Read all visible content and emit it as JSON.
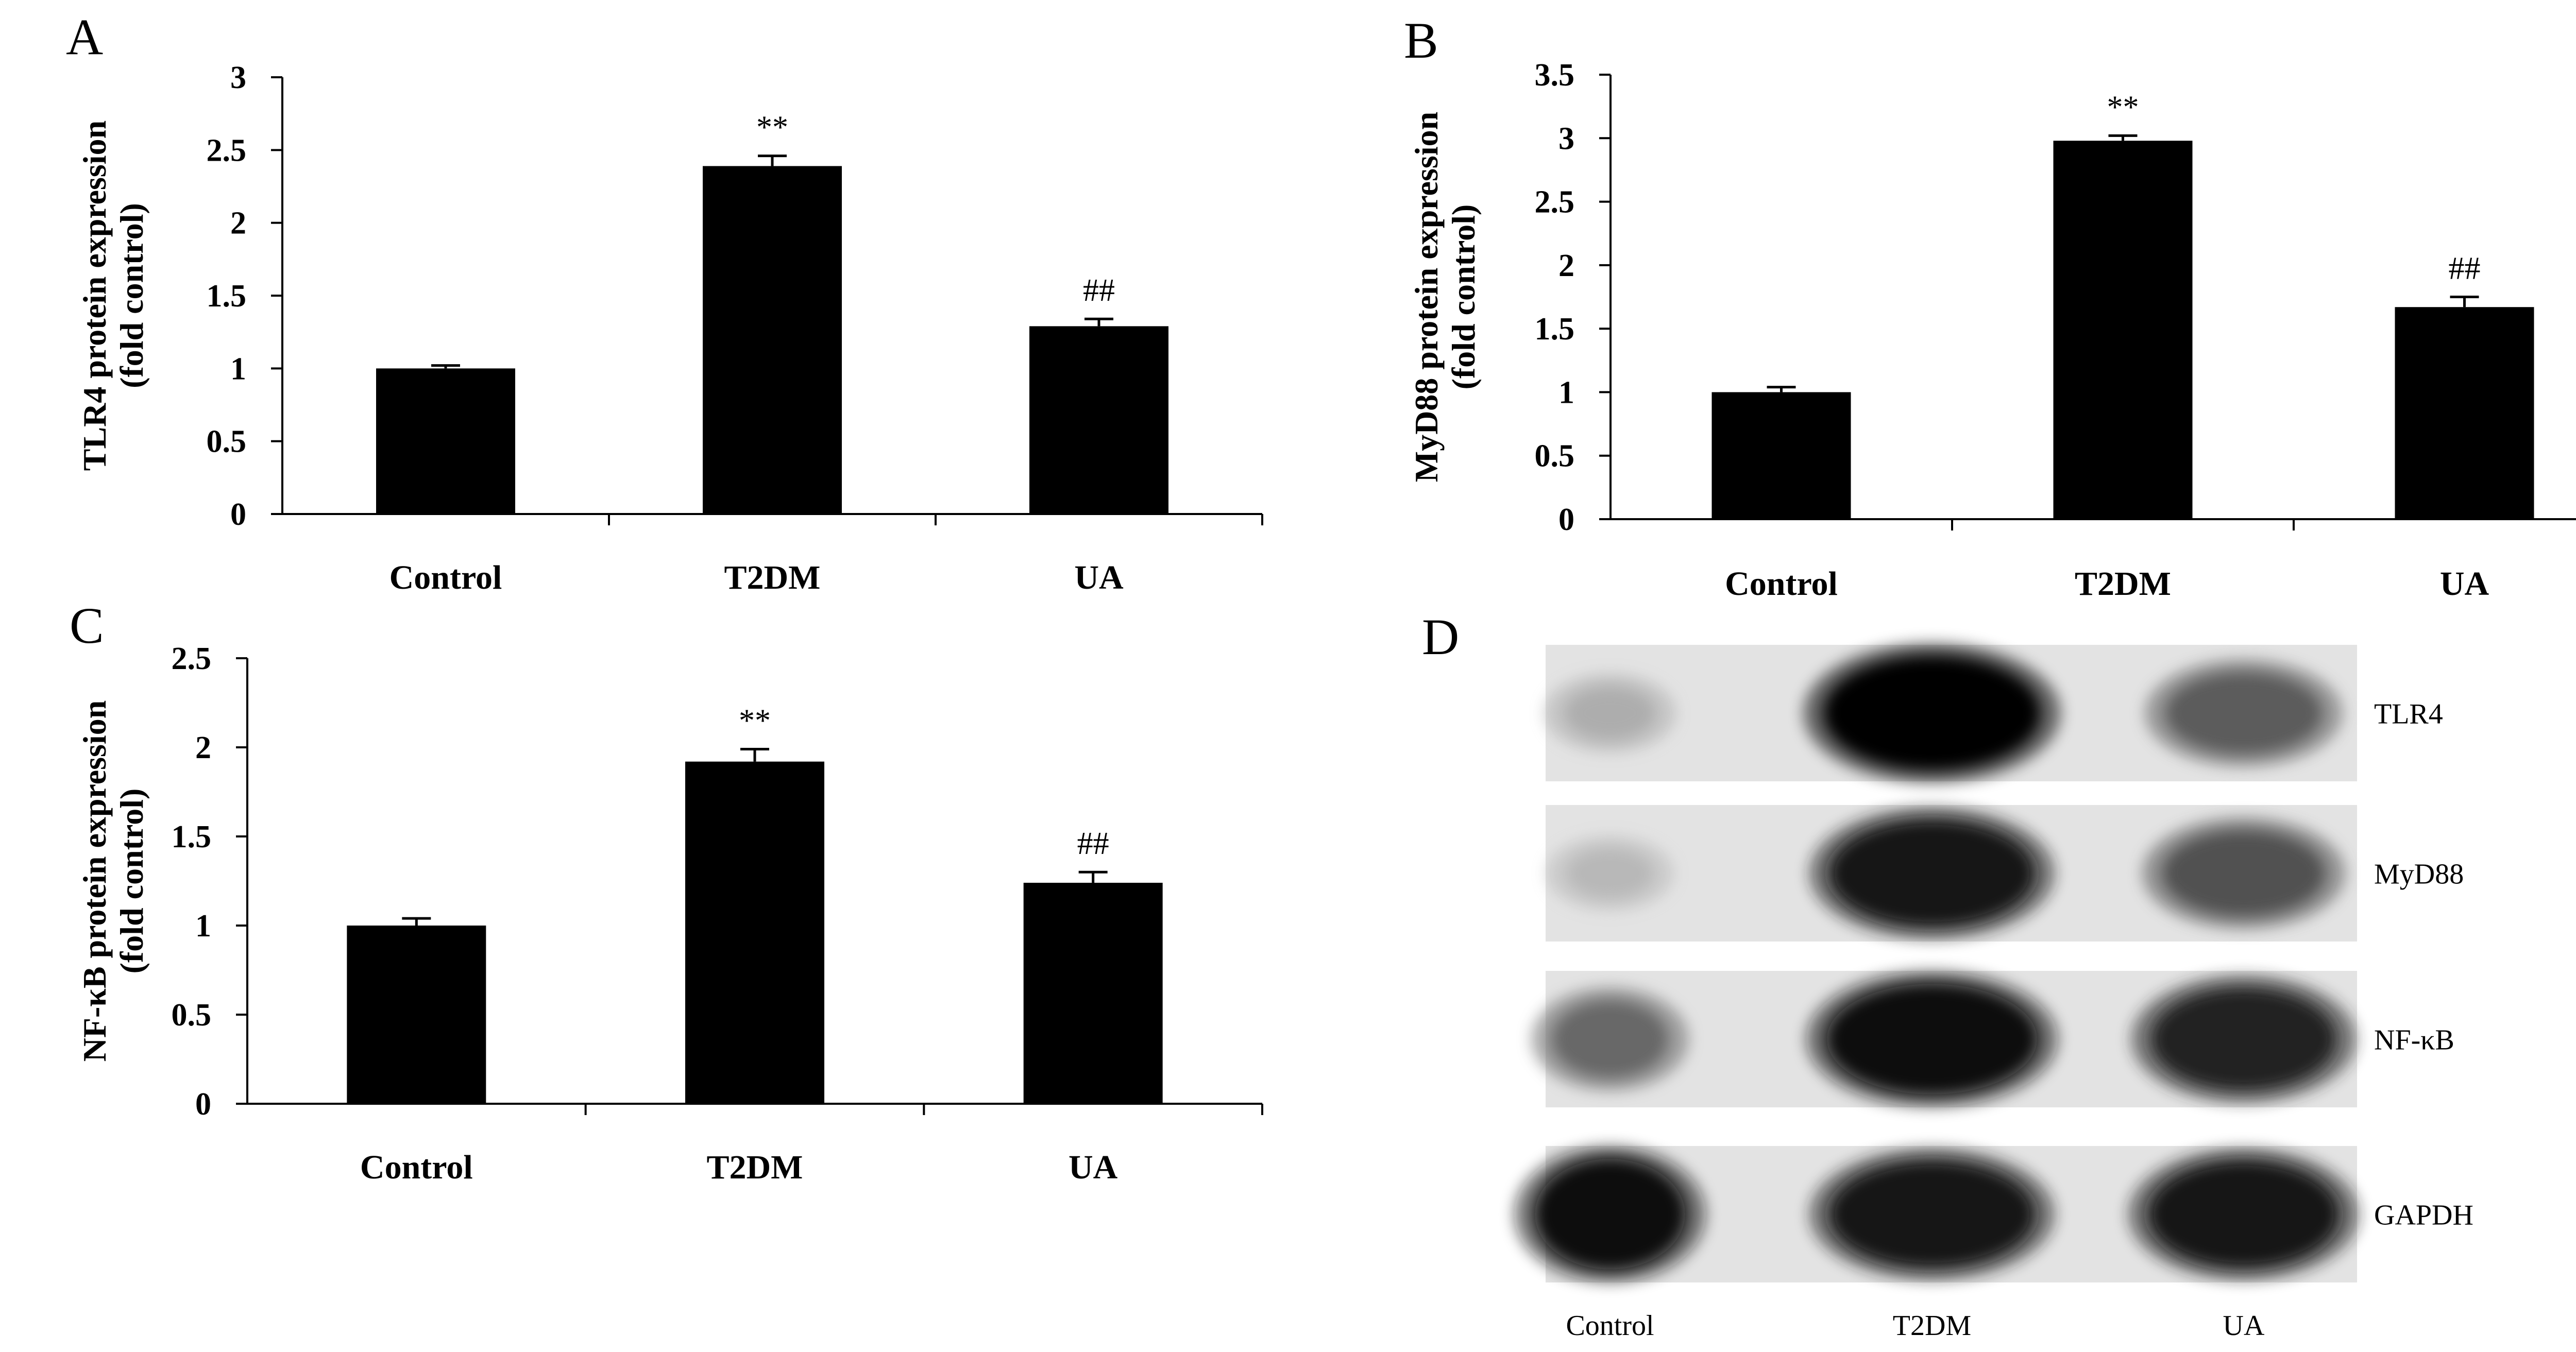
{
  "chart_data": [
    {
      "panel": "A",
      "type": "bar",
      "categories": [
        "Control",
        "T2DM",
        "UA"
      ],
      "values": [
        1.0,
        2.39,
        1.29
      ],
      "errors": [
        0.02,
        0.07,
        0.05
      ],
      "significance": [
        "",
        "**",
        "##"
      ],
      "ylabel_line1": "TLR4 protein expression",
      "ylabel_line2": "(fold control)",
      "ylim": [
        0,
        3
      ],
      "yticks": [
        "0",
        "0.5",
        "1",
        "1.5",
        "2",
        "2.5",
        "3"
      ],
      "ytick_values": [
        0,
        0.5,
        1,
        1.5,
        2,
        2.5,
        3
      ],
      "grid": false
    },
    {
      "panel": "B",
      "type": "bar",
      "categories": [
        "Control",
        "T2DM",
        "UA"
      ],
      "values": [
        1.0,
        2.98,
        1.67
      ],
      "errors": [
        0.04,
        0.04,
        0.08
      ],
      "significance": [
        "",
        "**",
        "##"
      ],
      "ylabel_line1": "MyD88 protein expression",
      "ylabel_line2": "(fold control)",
      "ylim": [
        0,
        3.5
      ],
      "yticks": [
        "0",
        "0.5",
        "1",
        "1.5",
        "2",
        "2.5",
        "3",
        "3.5"
      ],
      "ytick_values": [
        0,
        0.5,
        1,
        1.5,
        2,
        2.5,
        3,
        3.5
      ],
      "grid": false
    },
    {
      "panel": "C",
      "type": "bar",
      "categories": [
        "Control",
        "T2DM",
        "UA"
      ],
      "values": [
        1.0,
        1.92,
        1.24
      ],
      "errors": [
        0.04,
        0.07,
        0.06
      ],
      "significance": [
        "",
        "**",
        "##"
      ],
      "ylabel_line1": "NF-κB protein expression",
      "ylabel_line2": "(fold control)",
      "ylim": [
        0,
        2.5
      ],
      "yticks": [
        "0",
        "0.5",
        "1",
        "1.5",
        "2",
        "2.5"
      ],
      "ytick_values": [
        0,
        0.5,
        1,
        1.5,
        2,
        2.5
      ],
      "grid": false
    }
  ],
  "blot": {
    "panel": "D",
    "lanes": [
      "Control",
      "T2DM",
      "UA"
    ],
    "rows": [
      {
        "name": "TLR4",
        "intensity": [
          0.25,
          1.0,
          0.6
        ]
      },
      {
        "name": "MyD88",
        "intensity": [
          0.2,
          0.9,
          0.65
        ]
      },
      {
        "name": "NF-κB",
        "intensity": [
          0.55,
          0.95,
          0.85
        ]
      },
      {
        "name": "GAPDH",
        "intensity": [
          0.95,
          0.9,
          0.9
        ]
      }
    ]
  }
}
